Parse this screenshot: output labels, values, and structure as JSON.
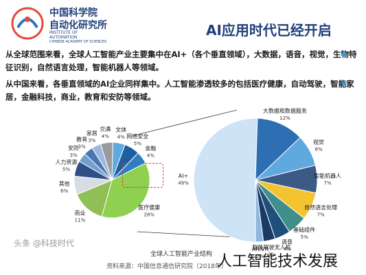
{
  "header": {
    "title": "AI应用时代已经开启",
    "logo_line1": "中国科学院",
    "logo_line2": "自动化研究所",
    "logo_en1": "INSTITUTE OF",
    "logo_en2": "AUTOMATION",
    "logo_en3": "CHINESE ACADEMY OF SCIENCES"
  },
  "bullets": [
    "从全球范围来看，全球人工智能产业主要集中在AI+（各个垂直领域），大数据，语音，视觉，生物特征识别，自然语言处理，智能机器人等领域。",
    "从中国来看，各垂直领域的AI企业同样集中。人工智能渗透较多的包括医疗健康，自动驾驶，智能家居，金融科技，商业，教育和安防等领域。"
  ],
  "source": "资料来源：中国信息通信研究院（2018年）",
  "chart_title": "全球人工智能产业结构",
  "footer": "人工智能技术发展",
  "watermark": "头条 @科技时代",
  "colors": {
    "accent": "#1f3f7a",
    "highlight_box": "#d23a3a"
  },
  "chart_data": {
    "type": "pie",
    "title": "全球人工智能产业结构",
    "left_pie": {
      "categories": [
        "医疗健康",
        "商业",
        "其他",
        "人力资源",
        "安防",
        "教育",
        "家居",
        "交通",
        "文体",
        "网络安全",
        "金融"
      ],
      "values": [
        28,
        11,
        6,
        5,
        3,
        3,
        3,
        4,
        4,
        5,
        4
      ],
      "labels": [
        "28%",
        "11%",
        "6%",
        "5%",
        "3%",
        "3%",
        "3%",
        "4%",
        "4%",
        "5%",
        "4%"
      ],
      "colors": [
        "#90d050",
        "#8fbf55",
        "#d7dde3",
        "#2f4f86",
        "#6fa0cc",
        "#4c74b4",
        "#9bb9e0",
        "#9a9a9a",
        "#5fa9df",
        "#1f5fa0",
        "#2d7fc4"
      ]
    },
    "right_pie": {
      "categories": [
        "AI+",
        "大数据和数据服务",
        "视觉",
        "智能机器人",
        "自然语言处理",
        "基础组件",
        "语音",
        "智能驾驶无人机",
        "AR/VR"
      ],
      "values": [
        49,
        12,
        8,
        7,
        7,
        5,
        4,
        3,
        2
      ],
      "labels": [
        "49%",
        "12%",
        "8%",
        "7%",
        "7%",
        "5%",
        "4%",
        "3%",
        "2%"
      ],
      "colors": [
        "#cfe3f6",
        "#2e6fb3",
        "#5fa9df",
        "#3c5a86",
        "#f4c430",
        "#3f8f8a",
        "#1f4f7a",
        "#1a3a66",
        "#8fb8e0"
      ]
    }
  }
}
